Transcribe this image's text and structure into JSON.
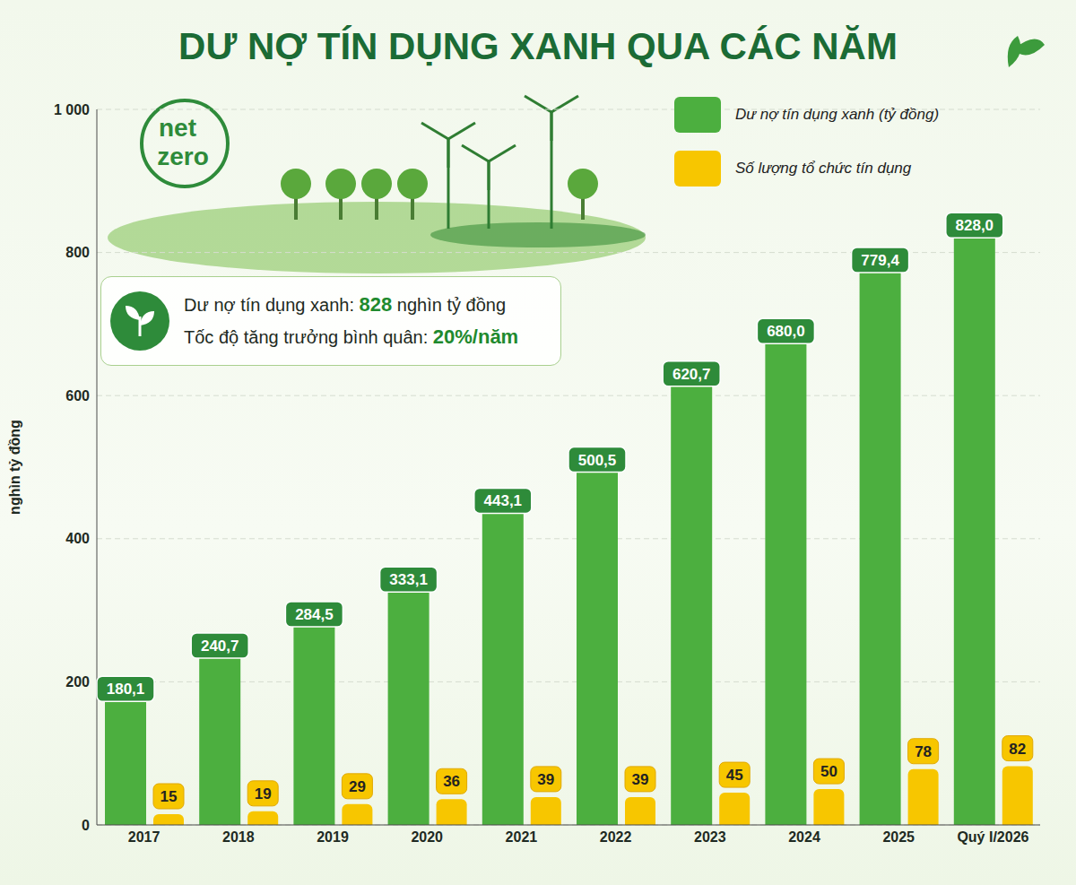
{
  "chart_data": {
    "type": "bar",
    "title": "DƯ NỢ TÍN DỤNG XANH QUA CÁC NĂM",
    "badge": [
      "net",
      "zero"
    ],
    "y_label": "nghìn tỷ đồng",
    "categories": [
      "2017",
      "2018",
      "2019",
      "2020",
      "2021",
      "2022",
      "2023",
      "2024",
      "2025",
      "Quý I/2026"
    ],
    "series": [
      {
        "name": "Dư nợ tín dụng xanh (tỷ đồng)",
        "color": "#4caf3f",
        "values": [
          180.1,
          240.7,
          284.5,
          333.1,
          443.1,
          500.5,
          620.7,
          680.0,
          779.4,
          828.0
        ],
        "value_labels": [
          "180,1",
          "240,7",
          "284,5",
          "333,1",
          "443,1",
          "500,5",
          "620,7",
          "680,0",
          "779,4",
          "828,0"
        ]
      },
      {
        "name": "Số lượng tổ chức tín dụng",
        "color": "#f7c600",
        "values": [
          15,
          19,
          29,
          36,
          39,
          39,
          45,
          50,
          78,
          82
        ]
      }
    ],
    "annotations": [
      "Dư nợ tín dụng xanh: 828 nghìn tỷ đồng",
      "Tốc độ tăng trưởng bình quân: 20%/năm"
    ],
    "ylim": [
      0,
      1000
    ],
    "yticks": [
      0,
      200,
      400,
      600,
      800,
      {
        "value": 1000,
        "label": "1 000"
      }
    ],
    "grid": true,
    "legend": "top-right",
    "data_labels": true
  }
}
